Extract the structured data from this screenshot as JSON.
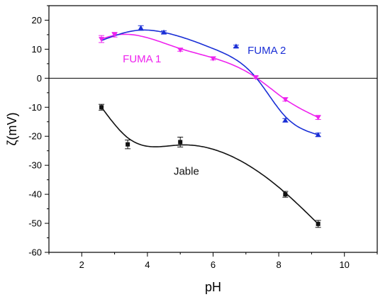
{
  "chart_data": {
    "type": "scatter",
    "xlabel": "pH",
    "ylabel": "ζ(mV)",
    "xlim": [
      1,
      11
    ],
    "ylim": [
      -60,
      25
    ],
    "xticks": [
      2,
      4,
      6,
      8,
      10
    ],
    "yticks": [
      -60,
      -50,
      -40,
      -30,
      -20,
      -10,
      0,
      10,
      20
    ],
    "zero_line": true,
    "series": [
      {
        "name": "FUMA 1",
        "color": "#ee22ee",
        "marker": "triangle-down",
        "x": [
          2.6,
          3.0,
          5.0,
          6.0,
          7.3,
          8.2,
          9.2
        ],
        "y": [
          13.5,
          15.0,
          9.8,
          6.8,
          0.3,
          -7.3,
          -13.5
        ],
        "err": [
          1.2,
          0.8,
          0.5,
          0.5,
          0.4,
          0.6,
          0.7
        ]
      },
      {
        "name": "FUMA 2",
        "color": "#1a2fd6",
        "marker": "triangle-up",
        "x": [
          3.8,
          4.5,
          6.7,
          8.2,
          9.2
        ],
        "y": [
          17.3,
          15.8,
          11.0,
          -14.5,
          -19.5
        ],
        "err": [
          0.8,
          0.5,
          0.4,
          0.6,
          0.6
        ]
      },
      {
        "name": "Jable",
        "color": "#111111",
        "marker": "square",
        "x": [
          2.6,
          3.4,
          5.0,
          8.2,
          9.2
        ],
        "y": [
          -10.0,
          -22.8,
          -22.0,
          -40.0,
          -50.2
        ],
        "err": [
          1.0,
          1.5,
          1.7,
          1.0,
          1.2
        ]
      }
    ]
  }
}
